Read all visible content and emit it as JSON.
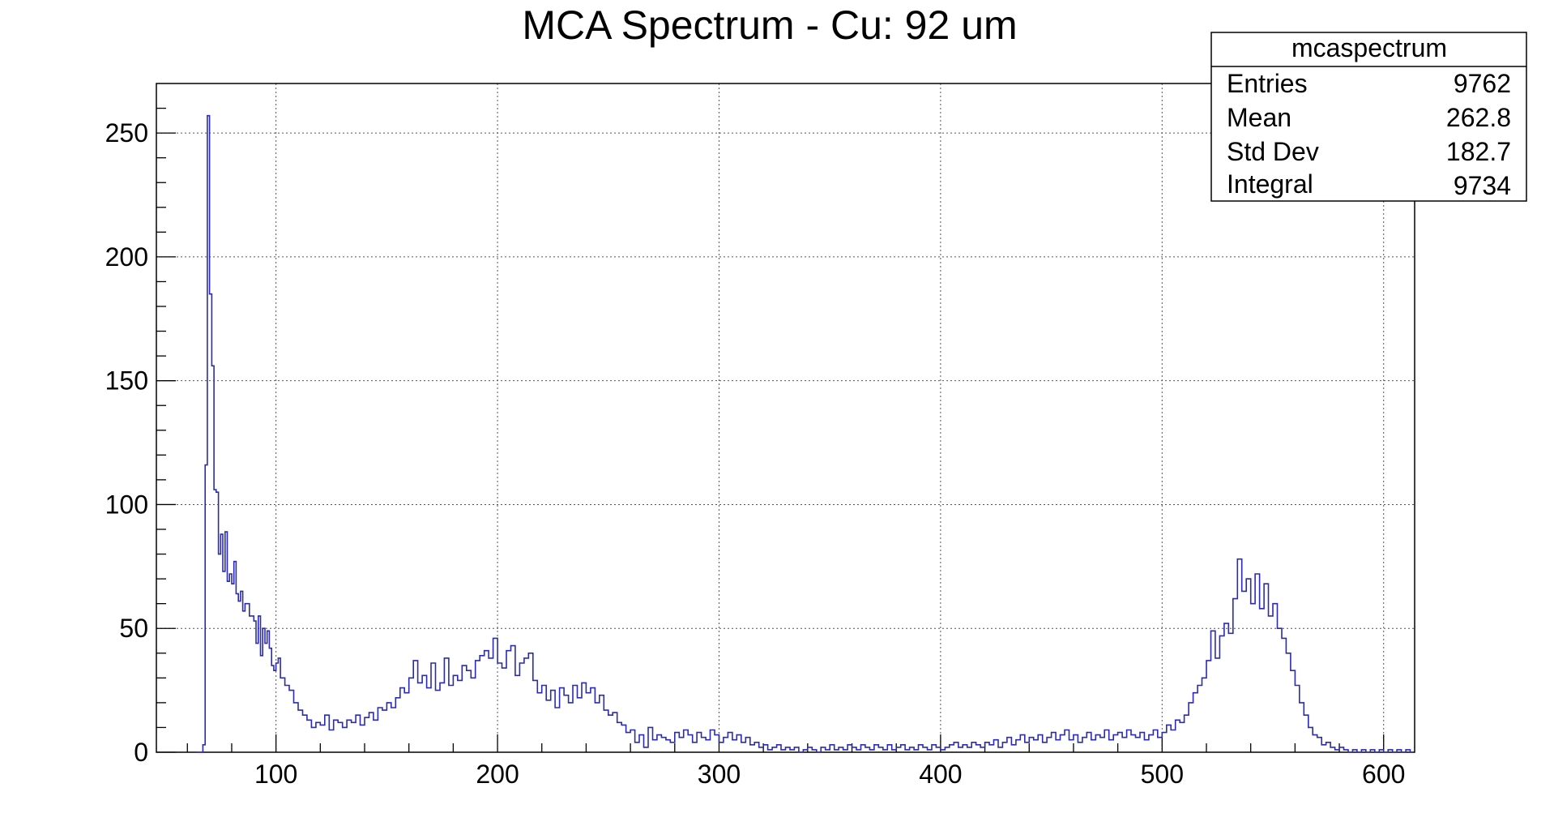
{
  "chart_data": {
    "type": "histogram",
    "title": "MCA Spectrum - Cu: 92 um",
    "xlabel": "",
    "ylabel": "",
    "xlim": [
      46,
      614
    ],
    "ylim": [
      0,
      270
    ],
    "grid": true,
    "x_ticks": [
      100,
      200,
      300,
      400,
      500,
      600
    ],
    "y_ticks": [
      0,
      50,
      100,
      150,
      200,
      250
    ],
    "line_color": "#2b2bb0",
    "stats_box": {
      "title": "mcaspectrum",
      "position": "top-right",
      "rows": [
        {
          "label": "Entries",
          "value": "9762"
        },
        {
          "label": "Mean",
          "value": "262.8"
        },
        {
          "label": "Std Dev",
          "value": "182.7"
        },
        {
          "label": "Integral",
          "value": "9734"
        }
      ]
    },
    "key_points": [
      [
        64,
        0
      ],
      [
        67,
        3
      ],
      [
        68,
        116
      ],
      [
        69,
        257
      ],
      [
        70,
        185
      ],
      [
        71,
        156
      ],
      [
        72,
        106
      ],
      [
        73,
        105
      ],
      [
        74,
        80
      ],
      [
        75,
        88
      ],
      [
        76,
        73
      ],
      [
        77,
        89
      ],
      [
        78,
        69
      ],
      [
        79,
        72
      ],
      [
        80,
        68
      ],
      [
        81,
        77
      ],
      [
        82,
        64
      ],
      [
        83,
        61
      ],
      [
        84,
        65
      ],
      [
        85,
        57
      ],
      [
        86,
        60
      ],
      [
        88,
        55
      ],
      [
        90,
        53
      ],
      [
        91,
        44
      ],
      [
        92,
        55
      ],
      [
        93,
        39
      ],
      [
        94,
        50
      ],
      [
        95,
        44
      ],
      [
        96,
        49
      ],
      [
        97,
        42
      ],
      [
        98,
        35
      ],
      [
        99,
        33
      ],
      [
        100,
        36
      ],
      [
        101,
        38
      ],
      [
        102,
        30
      ],
      [
        104,
        27
      ],
      [
        106,
        25
      ],
      [
        108,
        20
      ],
      [
        110,
        17
      ],
      [
        112,
        15
      ],
      [
        114,
        13
      ],
      [
        116,
        10
      ],
      [
        118,
        12
      ],
      [
        120,
        11
      ],
      [
        122,
        15
      ],
      [
        124,
        9
      ],
      [
        126,
        13
      ],
      [
        128,
        12
      ],
      [
        130,
        10
      ],
      [
        132,
        13
      ],
      [
        134,
        12
      ],
      [
        136,
        15
      ],
      [
        138,
        11
      ],
      [
        140,
        14
      ],
      [
        142,
        16
      ],
      [
        144,
        13
      ],
      [
        146,
        18
      ],
      [
        148,
        17
      ],
      [
        150,
        20
      ],
      [
        152,
        18
      ],
      [
        154,
        22
      ],
      [
        156,
        26
      ],
      [
        158,
        24
      ],
      [
        160,
        30
      ],
      [
        162,
        37
      ],
      [
        164,
        28
      ],
      [
        166,
        31
      ],
      [
        168,
        26
      ],
      [
        170,
        36
      ],
      [
        172,
        25
      ],
      [
        174,
        28
      ],
      [
        176,
        38
      ],
      [
        178,
        27
      ],
      [
        180,
        31
      ],
      [
        182,
        29
      ],
      [
        184,
        35
      ],
      [
        186,
        33
      ],
      [
        188,
        30
      ],
      [
        190,
        37
      ],
      [
        192,
        39
      ],
      [
        194,
        41
      ],
      [
        196,
        38
      ],
      [
        198,
        46
      ],
      [
        200,
        36
      ],
      [
        202,
        34
      ],
      [
        204,
        41
      ],
      [
        206,
        43
      ],
      [
        208,
        31
      ],
      [
        210,
        36
      ],
      [
        212,
        38
      ],
      [
        214,
        40
      ],
      [
        216,
        29
      ],
      [
        218,
        24
      ],
      [
        220,
        27
      ],
      [
        222,
        21
      ],
      [
        224,
        25
      ],
      [
        226,
        18
      ],
      [
        228,
        26
      ],
      [
        230,
        23
      ],
      [
        232,
        20
      ],
      [
        234,
        27
      ],
      [
        236,
        22
      ],
      [
        238,
        28
      ],
      [
        240,
        24
      ],
      [
        242,
        26
      ],
      [
        244,
        20
      ],
      [
        246,
        23
      ],
      [
        248,
        17
      ],
      [
        250,
        15
      ],
      [
        252,
        16
      ],
      [
        254,
        12
      ],
      [
        256,
        11
      ],
      [
        258,
        8
      ],
      [
        260,
        9
      ],
      [
        262,
        4
      ],
      [
        264,
        7
      ],
      [
        266,
        2
      ],
      [
        268,
        10
      ],
      [
        270,
        5
      ],
      [
        272,
        7
      ],
      [
        274,
        6
      ],
      [
        276,
        5
      ],
      [
        278,
        4
      ],
      [
        280,
        8
      ],
      [
        282,
        6
      ],
      [
        284,
        9
      ],
      [
        286,
        7
      ],
      [
        288,
        4
      ],
      [
        290,
        8
      ],
      [
        292,
        6
      ],
      [
        294,
        5
      ],
      [
        296,
        9
      ],
      [
        298,
        7
      ],
      [
        300,
        4
      ],
      [
        302,
        6
      ],
      [
        304,
        8
      ],
      [
        306,
        5
      ],
      [
        308,
        7
      ],
      [
        310,
        4
      ],
      [
        312,
        6
      ],
      [
        314,
        3
      ],
      [
        316,
        4
      ],
      [
        318,
        2
      ],
      [
        320,
        3
      ],
      [
        322,
        1
      ],
      [
        324,
        2
      ],
      [
        326,
        3
      ],
      [
        328,
        1
      ],
      [
        330,
        2
      ],
      [
        332,
        1
      ],
      [
        334,
        2
      ],
      [
        336,
        0
      ],
      [
        338,
        1
      ],
      [
        340,
        2
      ],
      [
        342,
        1
      ],
      [
        344,
        0
      ],
      [
        346,
        2
      ],
      [
        348,
        1
      ],
      [
        350,
        3
      ],
      [
        352,
        1
      ],
      [
        354,
        2
      ],
      [
        356,
        1
      ],
      [
        358,
        3
      ],
      [
        360,
        2
      ],
      [
        362,
        1
      ],
      [
        364,
        3
      ],
      [
        366,
        2
      ],
      [
        368,
        1
      ],
      [
        370,
        3
      ],
      [
        372,
        2
      ],
      [
        374,
        1
      ],
      [
        376,
        3
      ],
      [
        378,
        1
      ],
      [
        380,
        2
      ],
      [
        382,
        3
      ],
      [
        384,
        1
      ],
      [
        386,
        2
      ],
      [
        388,
        1
      ],
      [
        390,
        3
      ],
      [
        392,
        2
      ],
      [
        394,
        1
      ],
      [
        396,
        3
      ],
      [
        398,
        2
      ],
      [
        400,
        1
      ],
      [
        402,
        2
      ],
      [
        404,
        3
      ],
      [
        406,
        4
      ],
      [
        408,
        2
      ],
      [
        410,
        3
      ],
      [
        412,
        2
      ],
      [
        414,
        4
      ],
      [
        416,
        3
      ],
      [
        418,
        2
      ],
      [
        420,
        4
      ],
      [
        422,
        3
      ],
      [
        424,
        5
      ],
      [
        426,
        2
      ],
      [
        428,
        4
      ],
      [
        430,
        6
      ],
      [
        432,
        3
      ],
      [
        434,
        5
      ],
      [
        436,
        7
      ],
      [
        438,
        4
      ],
      [
        440,
        6
      ],
      [
        442,
        5
      ],
      [
        444,
        7
      ],
      [
        446,
        4
      ],
      [
        448,
        6
      ],
      [
        450,
        8
      ],
      [
        452,
        5
      ],
      [
        454,
        7
      ],
      [
        456,
        9
      ],
      [
        458,
        5
      ],
      [
        460,
        7
      ],
      [
        462,
        4
      ],
      [
        464,
        6
      ],
      [
        466,
        8
      ],
      [
        468,
        5
      ],
      [
        470,
        7
      ],
      [
        472,
        6
      ],
      [
        474,
        9
      ],
      [
        476,
        5
      ],
      [
        478,
        7
      ],
      [
        480,
        8
      ],
      [
        482,
        6
      ],
      [
        484,
        9
      ],
      [
        486,
        7
      ],
      [
        488,
        6
      ],
      [
        490,
        8
      ],
      [
        492,
        5
      ],
      [
        494,
        7
      ],
      [
        496,
        9
      ],
      [
        498,
        6
      ],
      [
        500,
        8
      ],
      [
        502,
        11
      ],
      [
        504,
        9
      ],
      [
        506,
        13
      ],
      [
        508,
        12
      ],
      [
        510,
        15
      ],
      [
        512,
        20
      ],
      [
        514,
        24
      ],
      [
        516,
        27
      ],
      [
        518,
        30
      ],
      [
        520,
        37
      ],
      [
        522,
        49
      ],
      [
        524,
        38
      ],
      [
        526,
        47
      ],
      [
        528,
        52
      ],
      [
        530,
        48
      ],
      [
        532,
        62
      ],
      [
        534,
        78
      ],
      [
        536,
        65
      ],
      [
        538,
        70
      ],
      [
        540,
        60
      ],
      [
        542,
        72
      ],
      [
        544,
        58
      ],
      [
        546,
        68
      ],
      [
        548,
        55
      ],
      [
        550,
        60
      ],
      [
        552,
        50
      ],
      [
        554,
        46
      ],
      [
        556,
        40
      ],
      [
        558,
        33
      ],
      [
        560,
        27
      ],
      [
        562,
        20
      ],
      [
        564,
        15
      ],
      [
        566,
        10
      ],
      [
        568,
        7
      ],
      [
        570,
        6
      ],
      [
        572,
        3
      ],
      [
        574,
        4
      ],
      [
        576,
        2
      ],
      [
        578,
        1
      ],
      [
        580,
        2
      ],
      [
        582,
        1
      ],
      [
        584,
        0
      ],
      [
        586,
        1
      ],
      [
        588,
        0
      ],
      [
        590,
        1
      ],
      [
        592,
        0
      ],
      [
        594,
        1
      ],
      [
        596,
        0
      ],
      [
        598,
        1
      ],
      [
        600,
        0
      ],
      [
        602,
        1
      ],
      [
        604,
        0
      ],
      [
        606,
        1
      ],
      [
        608,
        0
      ],
      [
        610,
        1
      ],
      [
        612,
        0
      ]
    ]
  }
}
